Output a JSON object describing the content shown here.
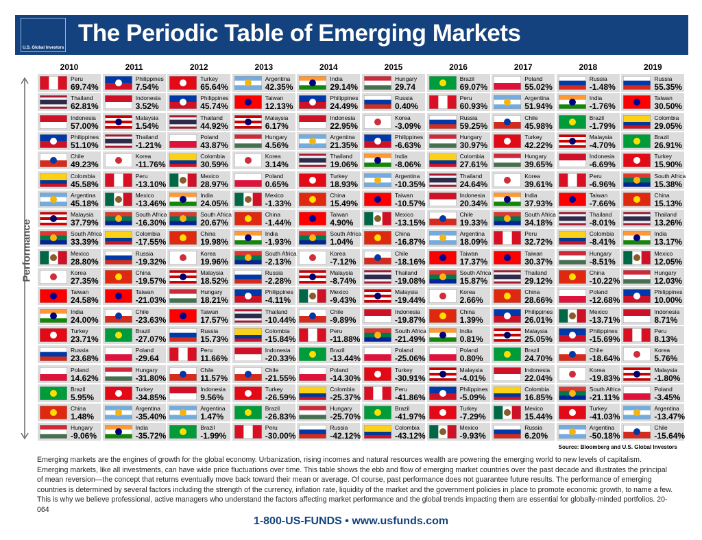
{
  "header": {
    "title": "The Periodic Table of Emerging Markets",
    "logo": "U.S. Global Investors"
  },
  "axis_label": "Performance",
  "columns": [
    {
      "year": "2010",
      "cells": [
        [
          "Peru",
          "69.74%"
        ],
        [
          "Thailand",
          "62.81%"
        ],
        [
          "Indonesia",
          "57.00%"
        ],
        [
          "Philippines",
          "51.10%"
        ],
        [
          "Chile",
          "49.23%"
        ],
        [
          "Colombia",
          "45.58%"
        ],
        [
          "Argentina",
          "45.18%"
        ],
        [
          "Malaysia",
          "37.79%"
        ],
        [
          "South Africa",
          "33.39%"
        ],
        [
          "Mexico",
          "28.80%"
        ],
        [
          "Korea",
          "27.35%"
        ],
        [
          "Taiwan",
          "24.58%"
        ],
        [
          "India",
          "24.00%"
        ],
        [
          "Turkey",
          "23.71%"
        ],
        [
          "Russia",
          "23.68%"
        ],
        [
          "Poland",
          "14.62%"
        ],
        [
          "Brazil",
          "5.95%"
        ],
        [
          "China",
          "1.48%"
        ],
        [
          "Hungary",
          "-9.06%"
        ]
      ]
    },
    {
      "year": "2011",
      "cells": [
        [
          "Philippines",
          "7.54%"
        ],
        [
          "Indonesia",
          "3.52%"
        ],
        [
          "Malaysia",
          "1.54%"
        ],
        [
          "Thailand",
          "-1.21%"
        ],
        [
          "Korea",
          "-11.76%"
        ],
        [
          "Peru",
          "-13.10%"
        ],
        [
          "Mexico",
          "-13.46%"
        ],
        [
          "South Africa",
          "-16.30%"
        ],
        [
          "Colombia",
          "-17.55%"
        ],
        [
          "Russia",
          "-19.32%"
        ],
        [
          "China",
          "-19.57%"
        ],
        [
          "Taiwan",
          "-21.03%"
        ],
        [
          "Chile",
          "-23.63%"
        ],
        [
          "Brazil",
          "-27.07%"
        ],
        [
          "Poland",
          "-29.64"
        ],
        [
          "Hungary",
          "-31.80%"
        ],
        [
          "Turkey",
          "-34.85%"
        ],
        [
          "Argentina",
          "-35.40%"
        ],
        [
          "India",
          "-35.72%"
        ]
      ]
    },
    {
      "year": "2012",
      "cells": [
        [
          "Turkey",
          "65.64%"
        ],
        [
          "Philippines",
          "45.74%"
        ],
        [
          "Thailand",
          "44.92%"
        ],
        [
          "Poland",
          "43.87%"
        ],
        [
          "Colombia",
          "30.59%"
        ],
        [
          "Mexico",
          "28.97%"
        ],
        [
          "India",
          "24.05%"
        ],
        [
          "South Africa",
          "20.67%"
        ],
        [
          "China",
          "19.98%"
        ],
        [
          "Korea",
          "19.96%"
        ],
        [
          "Malaysia",
          "18.52%"
        ],
        [
          "Hungary",
          "18.21%"
        ],
        [
          "Taiwan",
          "17.57%"
        ],
        [
          "Russia",
          "15.73%"
        ],
        [
          "Peru",
          "11.66%"
        ],
        [
          "Chile",
          "11.57%"
        ],
        [
          "Indonesia",
          "9.56%"
        ],
        [
          "Argentina",
          "1.47%"
        ],
        [
          "Brazil",
          "-1.99%"
        ]
      ]
    },
    {
      "year": "2013",
      "cells": [
        [
          "Argentina",
          "42.35%"
        ],
        [
          "Taiwan",
          "12.13%"
        ],
        [
          "Malaysia",
          "6.17%"
        ],
        [
          "Hungary",
          "4.56%"
        ],
        [
          "Korea",
          "3.14%"
        ],
        [
          "Poland",
          "0.65%"
        ],
        [
          "Mexico",
          "-1.33%"
        ],
        [
          "China",
          "-1.44%"
        ],
        [
          "India",
          "-1.93%"
        ],
        [
          "South Africa",
          "-2.13%"
        ],
        [
          "Russia",
          "-2.28%"
        ],
        [
          "Philippines",
          "-4.11%"
        ],
        [
          "Thailand",
          "-10.44%"
        ],
        [
          "Colombia",
          "-15.84%"
        ],
        [
          "Indonesia",
          "-20.33%"
        ],
        [
          "Chile",
          "-21.55%"
        ],
        [
          "Turkey",
          "-26.59%"
        ],
        [
          "Brazil",
          "-26.83%"
        ],
        [
          "Peru",
          "-30.00%"
        ]
      ]
    },
    {
      "year": "2014",
      "cells": [
        [
          "India",
          "29.14%"
        ],
        [
          "Philippines",
          "24.49%"
        ],
        [
          "Indonesia",
          "22.95%"
        ],
        [
          "Argentina",
          "21.35%"
        ],
        [
          "Thailand",
          "19.06%"
        ],
        [
          "Turkey",
          "18.93%"
        ],
        [
          "China",
          "15.49%"
        ],
        [
          "Taiwan",
          "4.90%"
        ],
        [
          "South Africa",
          "1.04%"
        ],
        [
          "Korea",
          "-7.12%"
        ],
        [
          "Malaysia",
          "-8.74%"
        ],
        [
          "Mexico",
          "-9.43%"
        ],
        [
          "Chile",
          "-9.89%"
        ],
        [
          "Peru",
          "-11.88%"
        ],
        [
          "Brazil",
          "-13.44%"
        ],
        [
          "Poland",
          "-14.30%"
        ],
        [
          "Colombia",
          "-25.37%"
        ],
        [
          "Hungary",
          "-25.70%"
        ],
        [
          "Russia",
          "-42.12%"
        ]
      ]
    },
    {
      "year": "2015",
      "cells": [
        [
          "Hungary",
          "29.74"
        ],
        [
          "Russia",
          "0.40%"
        ],
        [
          "Korea",
          "-3.09%"
        ],
        [
          "Philippines",
          "-6.63%"
        ],
        [
          "India",
          "-8.06%"
        ],
        [
          "Argentina",
          "-10.35%"
        ],
        [
          "Taiwan",
          "-10.57%"
        ],
        [
          "Mexico",
          "-13.15%"
        ],
        [
          "China",
          "-16.87%"
        ],
        [
          "Chile",
          "-18.16%"
        ],
        [
          "Thailand",
          "-19.08%"
        ],
        [
          "Malaysia",
          "-19.44%"
        ],
        [
          "Indonesia",
          "-19.87%"
        ],
        [
          "South Africa",
          "-21.49%"
        ],
        [
          "Poland",
          "-25.06%"
        ],
        [
          "Turkey",
          "-30.91%"
        ],
        [
          "Peru",
          "-41.86%"
        ],
        [
          "Brazil",
          "-41.97%"
        ],
        [
          "Colombia",
          "-43.12%"
        ]
      ]
    },
    {
      "year": "2016",
      "cells": [
        [
          "Brazil",
          "69.07%"
        ],
        [
          "Peru",
          "60.93%"
        ],
        [
          "Russia",
          "59.25%"
        ],
        [
          "Hungary",
          "30.97%"
        ],
        [
          "Colombia",
          "27.61%"
        ],
        [
          "Thailand",
          "24.64%"
        ],
        [
          "Indonesia",
          "20.34%"
        ],
        [
          "Chile",
          "19.33%"
        ],
        [
          "Argentina",
          "18.09%"
        ],
        [
          "Taiwan",
          "17.37%"
        ],
        [
          "South Africa",
          "15.87%"
        ],
        [
          "Korea",
          "2.66%"
        ],
        [
          "China",
          "1.39%"
        ],
        [
          "India",
          "0.81%"
        ],
        [
          "Poland",
          "0.80%"
        ],
        [
          "Malaysia",
          "-4.01%"
        ],
        [
          "Philippines",
          "-5.09%"
        ],
        [
          "Turkey",
          "-7.29%"
        ],
        [
          "Mexico",
          "-9.93%"
        ]
      ]
    },
    {
      "year": "2017",
      "cells": [
        [
          "Poland",
          "55.02%"
        ],
        [
          "Argentina",
          "51.94%"
        ],
        [
          "Chile",
          "45.98%"
        ],
        [
          "Turkey",
          "42.22%"
        ],
        [
          "Hungary",
          "39.65%"
        ],
        [
          "Korea",
          "39.61%"
        ],
        [
          "India",
          "37.93%"
        ],
        [
          "South Africa",
          "34.18%"
        ],
        [
          "Peru",
          "32.72%"
        ],
        [
          "Taiwan",
          "30.37%"
        ],
        [
          "Thailand",
          "29.12%"
        ],
        [
          "China",
          "28.66%"
        ],
        [
          "Philippines",
          "26.01%"
        ],
        [
          "Malaysia",
          "25.05%"
        ],
        [
          "Brazil",
          "24.70%"
        ],
        [
          "Indonesia",
          "22.04%"
        ],
        [
          "Colombia",
          "16.85%"
        ],
        [
          "Mexico",
          "15.44%"
        ],
        [
          "Russia",
          "6.20%"
        ]
      ]
    },
    {
      "year": "2018",
      "cells": [
        [
          "Russia",
          "-1.48%"
        ],
        [
          "India",
          "-1.76%"
        ],
        [
          "Brazil",
          "-1.79%"
        ],
        [
          "Malaysia",
          "-4.70%"
        ],
        [
          "Indonesia",
          "-6.69%"
        ],
        [
          "Peru",
          "-6.96%"
        ],
        [
          "Taiwan",
          "-7.66%"
        ],
        [
          "Thailand",
          "-8.01%"
        ],
        [
          "Colombia",
          "-8.41%"
        ],
        [
          "Hungary",
          "-8.51%"
        ],
        [
          "China",
          "-10.22%"
        ],
        [
          "Poland",
          "-12.68%"
        ],
        [
          "Mexico",
          "-13.71%"
        ],
        [
          "Philippines",
          "-15.69%"
        ],
        [
          "Chile",
          "-18.64%"
        ],
        [
          "Korea",
          "-19.83%"
        ],
        [
          "South Africa",
          "-21.11%"
        ],
        [
          "Turkey",
          "-41.03%"
        ],
        [
          "Argentina",
          "-50.18%"
        ]
      ]
    },
    {
      "year": "2019",
      "cells": [
        [
          "Russia",
          "55.35%"
        ],
        [
          "Taiwan",
          "30.50%"
        ],
        [
          "Colombia",
          "29.05%"
        ],
        [
          "Brazil",
          "26.91%"
        ],
        [
          "Turkey",
          "15.90%"
        ],
        [
          "South Africa",
          "15.38%"
        ],
        [
          "China",
          "15.13%"
        ],
        [
          "Thailand",
          "13.26%"
        ],
        [
          "India",
          "13.17%"
        ],
        [
          "Mexico",
          "12.05%"
        ],
        [
          "Hungary",
          "12.03%"
        ],
        [
          "Philippines",
          "10.00%"
        ],
        [
          "Indonesia",
          "8.71%"
        ],
        [
          "Peru",
          "8.13%"
        ],
        [
          "Korea",
          "5.76%"
        ],
        [
          "Malaysia",
          "-1.80%"
        ],
        [
          "Poland",
          "-3.45%"
        ],
        [
          "Argentina",
          "-13.47%"
        ],
        [
          "Chile",
          "-15.64%"
        ]
      ]
    }
  ],
  "flag_colors": {
    "Peru": {
      "dir": "v",
      "stripes": [
        "#d91023",
        "#ffffff",
        "#d91023"
      ]
    },
    "Thailand": {
      "dir": "h",
      "stripes": [
        "#a51931",
        "#f4f5f8",
        "#2d2a4a",
        "#2d2a4a",
        "#f4f5f8",
        "#a51931"
      ]
    },
    "Indonesia": {
      "dir": "h",
      "stripes": [
        "#ce1126",
        "#ffffff"
      ]
    },
    "Philippines": {
      "dir": "h",
      "stripes": [
        "#0038a8",
        "#ce1126"
      ],
      "emblem": "#ffffff"
    },
    "Chile": {
      "dir": "h",
      "stripes": [
        "#ffffff",
        "#d52b1e"
      ],
      "emblem": "#0039a6"
    },
    "Colombia": {
      "dir": "h",
      "stripes": [
        "#fcd116",
        "#fcd116",
        "#003893",
        "#ce1126"
      ]
    },
    "Argentina": {
      "dir": "h",
      "stripes": [
        "#74acdf",
        "#ffffff",
        "#74acdf"
      ],
      "emblem": "#f6b40e"
    },
    "Malaysia": {
      "dir": "h",
      "stripes": [
        "#cc0001",
        "#ffffff",
        "#cc0001",
        "#ffffff",
        "#cc0001"
      ],
      "emblem": "#010066"
    },
    "South Africa": {
      "dir": "h",
      "stripes": [
        "#de3831",
        "#007a4d",
        "#002395"
      ],
      "emblem": "#ffb612"
    },
    "Mexico": {
      "dir": "v",
      "stripes": [
        "#006847",
        "#ffffff",
        "#ce1126"
      ],
      "emblem": "#8a5a2b"
    },
    "Korea": {
      "dir": "h",
      "stripes": [
        "#ffffff"
      ],
      "emblem": "#cd2e3a"
    },
    "Taiwan": {
      "dir": "h",
      "stripes": [
        "#fe0000"
      ],
      "emblem": "#000095"
    },
    "India": {
      "dir": "h",
      "stripes": [
        "#ff9933",
        "#ffffff",
        "#138808"
      ],
      "emblem": "#000080"
    },
    "Turkey": {
      "dir": "h",
      "stripes": [
        "#e30a17"
      ],
      "emblem": "#ffffff"
    },
    "Russia": {
      "dir": "h",
      "stripes": [
        "#ffffff",
        "#0039a6",
        "#d52b1e"
      ]
    },
    "Poland": {
      "dir": "h",
      "stripes": [
        "#ffffff",
        "#dc143c"
      ]
    },
    "Brazil": {
      "dir": "h",
      "stripes": [
        "#009c3b"
      ],
      "emblem": "#ffdf00"
    },
    "China": {
      "dir": "h",
      "stripes": [
        "#de2910"
      ],
      "emblem": "#ffde00"
    },
    "Hungary": {
      "dir": "h",
      "stripes": [
        "#ce2939",
        "#ffffff",
        "#477050"
      ]
    }
  },
  "source": "Source: Bloomberg and U.S. Global Investors",
  "body": "Emerging markets are the engines of growth for the global economy. Urbanization, rising incomes and natural resources wealth are powering the emerging world to new levels of capitalism. Emerging markets, like all investments, can have wide price fluctuations over time. This table shows the ebb and flow of emerging market countries over the past decade and illustrates the principal of mean reversion—the concept that returns eventually move back toward their mean or average. Of course, past performance does not guarantee future results. The performance of emerging countries is determined by several factors including the strength of the currency, inflation rate, liquidity of the market and the government policies in place to promote economic growth, to name a few. This is why we believe professional, active managers who understand the factors affecting market performance and the global trends impacting them are essential for globally-minded portfolios. 20-064",
  "footer": "1-800-US-FUNDS • www.usfunds.com"
}
